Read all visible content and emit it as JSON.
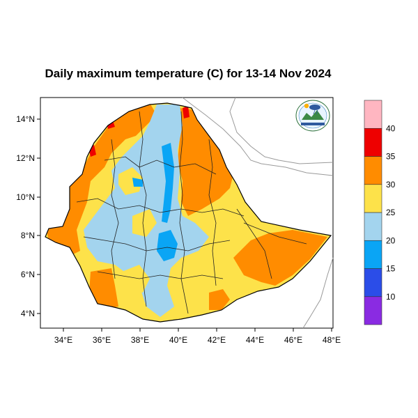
{
  "title": "Daily maximum temperature (C) for 13-14 Nov 2024",
  "map": {
    "lat_ticks": [
      "14°N",
      "12°N",
      "10°N",
      "8°N",
      "6°N",
      "4°N"
    ],
    "lon_ticks": [
      "34°E",
      "36°E",
      "38°E",
      "40°E",
      "42°E",
      "44°E",
      "46°E",
      "48°E"
    ]
  },
  "colorbar": {
    "bins": [
      {
        "range": "5-10",
        "color": "#8a2be2"
      },
      {
        "range": "10-15",
        "color": "#2b4de8"
      },
      {
        "range": "15-20",
        "color": "#0aa5f5"
      },
      {
        "range": "20-25",
        "color": "#a3d4ee"
      },
      {
        "range": "25-30",
        "color": "#fde24a"
      },
      {
        "range": "30-35",
        "color": "#ff8c00"
      },
      {
        "range": "35-40",
        "color": "#ee0000"
      },
      {
        "range": "40-45",
        "color": "#ffb6c1"
      }
    ],
    "labels": [
      "10",
      "15",
      "20",
      "25",
      "30",
      "35",
      "40"
    ]
  },
  "logo": {
    "icon": "ethiopian-meteorology-institute-logo"
  }
}
